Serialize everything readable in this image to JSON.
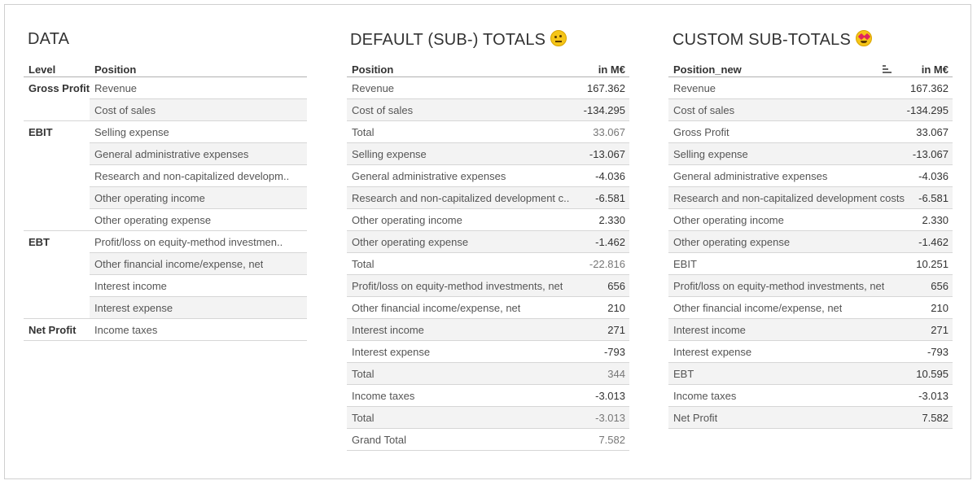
{
  "data_panel": {
    "title": "DATA",
    "headers": {
      "level": "Level",
      "position": "Position"
    },
    "groups": [
      {
        "level": "Gross Profit",
        "positions": [
          "Revenue",
          "Cost of sales"
        ]
      },
      {
        "level": "EBIT",
        "positions": [
          "Selling expense",
          "General administrative expenses",
          "Research and non-capitalized developm..",
          "Other operating income",
          "Other operating expense"
        ]
      },
      {
        "level": "EBT",
        "positions": [
          "Profit/loss on equity-method investmen..",
          "Other financial income/expense, net",
          "Interest income",
          "Interest expense"
        ]
      },
      {
        "level": "Net Profit",
        "positions": [
          "Income taxes"
        ]
      }
    ]
  },
  "default_panel": {
    "title": "DEFAULT (SUB-) TOTALS",
    "emoji": "face-with-raised-eyebrow-icon",
    "headers": {
      "position": "Position",
      "value": "in M€"
    },
    "rows": [
      {
        "label": "Revenue",
        "value": "167.362",
        "total": false
      },
      {
        "label": "Cost of sales",
        "value": "-134.295",
        "total": false
      },
      {
        "label": "Total",
        "value": "33.067",
        "total": true
      },
      {
        "label": "Selling expense",
        "value": "-13.067",
        "total": false
      },
      {
        "label": "General administrative expenses",
        "value": "-4.036",
        "total": false
      },
      {
        "label": "Research and non-capitalized development c..",
        "value": "-6.581",
        "total": false
      },
      {
        "label": "Other operating income",
        "value": "2.330",
        "total": false
      },
      {
        "label": "Other operating expense",
        "value": "-1.462",
        "total": false
      },
      {
        "label": "Total",
        "value": "-22.816",
        "total": true
      },
      {
        "label": "Profit/loss on equity-method investments, net",
        "value": "656",
        "total": false
      },
      {
        "label": "Other financial income/expense, net",
        "value": "210",
        "total": false
      },
      {
        "label": "Interest income",
        "value": "271",
        "total": false
      },
      {
        "label": "Interest expense",
        "value": "-793",
        "total": false
      },
      {
        "label": "Total",
        "value": "344",
        "total": true
      },
      {
        "label": "Income taxes",
        "value": "-3.013",
        "total": false
      },
      {
        "label": "Total",
        "value": "-3.013",
        "total": true
      },
      {
        "label": "Grand Total",
        "value": "7.582",
        "total": true
      }
    ]
  },
  "custom_panel": {
    "title": "CUSTOM SUB-TOTALS",
    "emoji": "heart-eyes-icon",
    "headers": {
      "position": "Position_new",
      "value": "in M€"
    },
    "sort_icon": "sort-icon",
    "rows": [
      {
        "label": "Revenue",
        "value": "167.362"
      },
      {
        "label": "Cost of sales",
        "value": "-134.295"
      },
      {
        "label": "Gross Profit",
        "value": "33.067"
      },
      {
        "label": "Selling expense",
        "value": "-13.067"
      },
      {
        "label": "General administrative expenses",
        "value": "-4.036"
      },
      {
        "label": "Research and non-capitalized development costs",
        "value": "-6.581"
      },
      {
        "label": "Other operating income",
        "value": "2.330"
      },
      {
        "label": "Other operating expense",
        "value": "-1.462"
      },
      {
        "label": "EBIT",
        "value": "10.251"
      },
      {
        "label": "Profit/loss on equity-method investments, net",
        "value": "656"
      },
      {
        "label": "Other financial income/expense, net",
        "value": "210"
      },
      {
        "label": "Interest income",
        "value": "271"
      },
      {
        "label": "Interest expense",
        "value": "-793"
      },
      {
        "label": "EBT",
        "value": "10.595"
      },
      {
        "label": "Income taxes",
        "value": "-3.013"
      },
      {
        "label": "Net Profit",
        "value": "7.582"
      }
    ]
  }
}
